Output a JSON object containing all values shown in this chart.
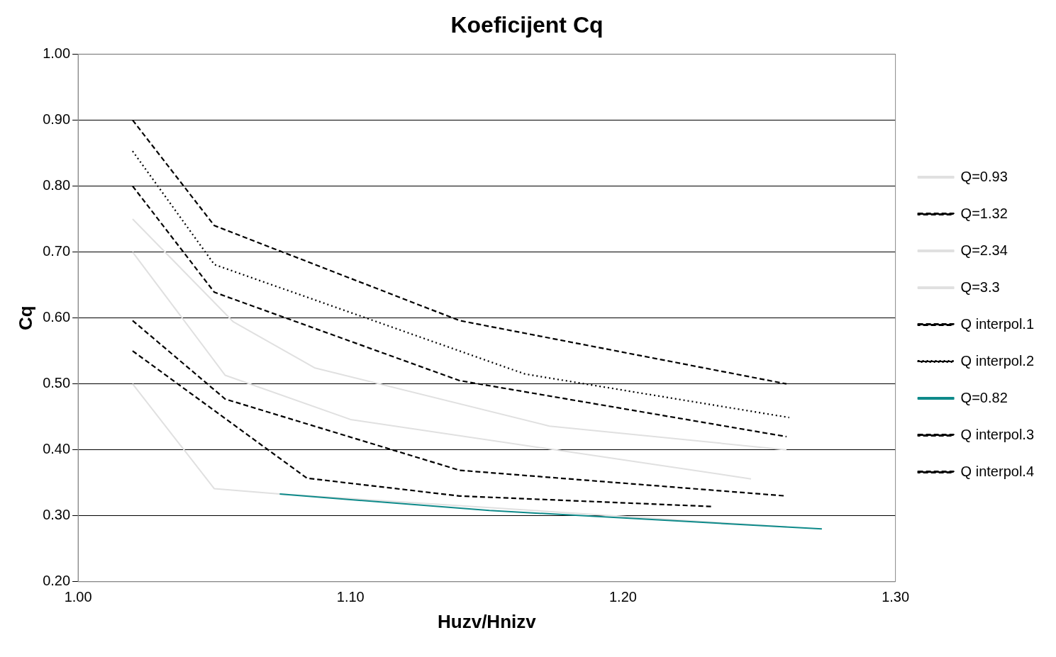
{
  "chart_data": {
    "type": "line",
    "title": "Koeficijent Cq",
    "xlabel": "Huzv/Hnizv",
    "ylabel": "Cq",
    "xlim": [
      1.0,
      1.3
    ],
    "xticks": [
      {
        "value": 1.0,
        "label": "1.00"
      },
      {
        "value": 1.1,
        "label": "1.10"
      },
      {
        "value": 1.2,
        "label": "1.20"
      },
      {
        "value": 1.3,
        "label": "1.30"
      }
    ],
    "ylim": [
      0.2,
      1.0
    ],
    "yticks": [
      {
        "value": 0.2,
        "label": "0.20"
      },
      {
        "value": 0.3,
        "label": "0.30"
      },
      {
        "value": 0.4,
        "label": "0.40"
      },
      {
        "value": 0.5,
        "label": "0.50"
      },
      {
        "value": 0.6,
        "label": "0.60"
      },
      {
        "value": 0.7,
        "label": "0.70"
      },
      {
        "value": 0.8,
        "label": "0.80"
      },
      {
        "value": 0.9,
        "label": "0.90"
      },
      {
        "value": 1.0,
        "label": "1.00"
      }
    ],
    "grid": "y",
    "legend": "right",
    "marker": "none",
    "series": [
      {
        "name": "Q=0.93",
        "color": "#e0e0e0",
        "line_style": "solid",
        "x": [
          1.02,
          1.057,
          1.087,
          1.173,
          1.26
        ],
        "values": [
          0.75,
          0.594,
          0.524,
          0.436,
          0.4
        ]
      },
      {
        "name": "Q=1.32",
        "color": "#000000",
        "line_style": "dashed",
        "x": [
          1.02,
          1.05,
          1.14,
          1.26
        ],
        "values": [
          0.9,
          0.74,
          0.596,
          0.5
        ]
      },
      {
        "name": "Q=2.34",
        "color": "#e0e0e0",
        "line_style": "solid",
        "x": [
          1.02,
          1.054,
          1.1,
          1.247
        ],
        "values": [
          0.7,
          0.513,
          0.446,
          0.356
        ]
      },
      {
        "name": "Q=3.3",
        "color": "#e0e0e0",
        "line_style": "solid",
        "x": [
          1.02,
          1.05,
          1.074,
          1.26
        ],
        "values": [
          0.5,
          0.341,
          0.333,
          0.283
        ]
      },
      {
        "name": "Q interpol.1",
        "color": "#000000",
        "line_style": "dashed",
        "x": [
          1.02,
          1.05,
          1.14,
          1.26
        ],
        "values": [
          0.8,
          0.639,
          0.505,
          0.42
        ]
      },
      {
        "name": "Q interpol.2",
        "color": "#000000",
        "line_style": "dotted",
        "x": [
          1.02,
          1.05,
          1.164,
          1.261
        ],
        "values": [
          0.853,
          0.681,
          0.515,
          0.449
        ]
      },
      {
        "name": "Q=0.82",
        "color": "#0e8a8a",
        "line_style": "solid",
        "x": [
          1.074,
          1.151,
          1.273
        ],
        "values": [
          0.333,
          0.308,
          0.28
        ]
      },
      {
        "name": "Q interpol.3",
        "color": "#000000",
        "line_style": "dashed",
        "x": [
          1.02,
          1.054,
          1.14,
          1.26
        ],
        "values": [
          0.596,
          0.477,
          0.369,
          0.33
        ]
      },
      {
        "name": "Q interpol.4",
        "color": "#000000",
        "line_style": "dashed",
        "x": [
          1.02,
          1.084,
          1.14,
          1.233
        ],
        "values": [
          0.55,
          0.357,
          0.33,
          0.314
        ]
      }
    ]
  }
}
